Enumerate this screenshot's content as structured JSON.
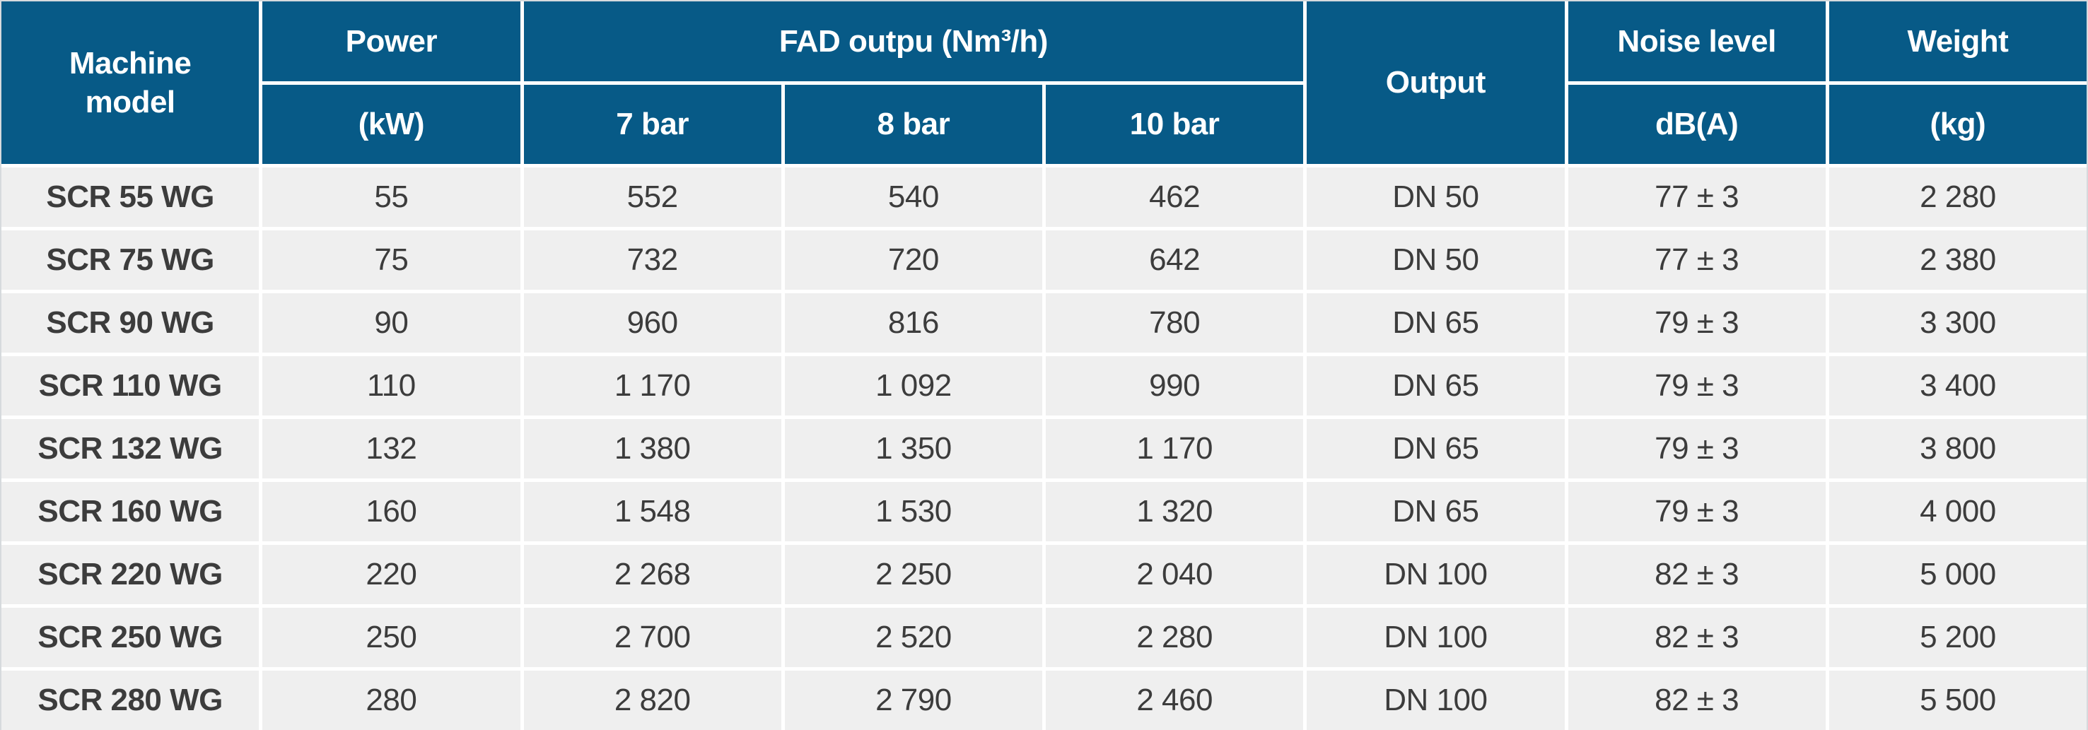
{
  "theme": {
    "header_bg": "#075a87",
    "header_text": "#ffffff",
    "row_bg": "#efefef",
    "row_text": "#3c3c3c",
    "separator": "#ffffff",
    "outer_border": "#d6dadd"
  },
  "table": {
    "header": {
      "machine_model": "Machine model",
      "power": "Power",
      "power_unit": "(kW)",
      "fad": "FAD outpu (Nm³/h)",
      "fad_sub": [
        "7 bar",
        "8 bar",
        "10 bar"
      ],
      "output": "Output",
      "noise": "Noise level",
      "noise_unit": "dB(A)",
      "weight": "Weight",
      "weight_unit": "(kg)"
    },
    "column_keys": [
      "model",
      "power_kw",
      "fad_7bar",
      "fad_8bar",
      "fad_10bar",
      "output",
      "noise_db",
      "weight_kg"
    ],
    "rows": [
      {
        "model": "SCR 55 WG",
        "power_kw": "55",
        "fad_7bar": "552",
        "fad_8bar": "540",
        "fad_10bar": "462",
        "output": "DN 50",
        "noise_db": "77 ± 3",
        "weight_kg": "2 280"
      },
      {
        "model": "SCR 75 WG",
        "power_kw": "75",
        "fad_7bar": "732",
        "fad_8bar": "720",
        "fad_10bar": "642",
        "output": "DN 50",
        "noise_db": "77 ± 3",
        "weight_kg": "2 380"
      },
      {
        "model": "SCR 90 WG",
        "power_kw": "90",
        "fad_7bar": "960",
        "fad_8bar": "816",
        "fad_10bar": "780",
        "output": "DN 65",
        "noise_db": "79 ± 3",
        "weight_kg": "3 300"
      },
      {
        "model": "SCR 110 WG",
        "power_kw": "110",
        "fad_7bar": "1 170",
        "fad_8bar": "1 092",
        "fad_10bar": "990",
        "output": "DN 65",
        "noise_db": "79 ± 3",
        "weight_kg": "3 400"
      },
      {
        "model": "SCR 132 WG",
        "power_kw": "132",
        "fad_7bar": "1 380",
        "fad_8bar": "1 350",
        "fad_10bar": "1 170",
        "output": "DN 65",
        "noise_db": "79 ± 3",
        "weight_kg": "3 800"
      },
      {
        "model": "SCR 160 WG",
        "power_kw": "160",
        "fad_7bar": "1 548",
        "fad_8bar": "1 530",
        "fad_10bar": "1 320",
        "output": "DN 65",
        "noise_db": "79 ± 3",
        "weight_kg": "4 000"
      },
      {
        "model": "SCR 220 WG",
        "power_kw": "220",
        "fad_7bar": "2 268",
        "fad_8bar": "2 250",
        "fad_10bar": "2 040",
        "output": "DN 100",
        "noise_db": "82 ± 3",
        "weight_kg": "5 000"
      },
      {
        "model": "SCR 250 WG",
        "power_kw": "250",
        "fad_7bar": "2 700",
        "fad_8bar": "2 520",
        "fad_10bar": "2 280",
        "output": "DN 100",
        "noise_db": "82 ± 3",
        "weight_kg": "5 200"
      },
      {
        "model": "SCR 280 WG",
        "power_kw": "280",
        "fad_7bar": "2 820",
        "fad_8bar": "2 790",
        "fad_10bar": "2 460",
        "output": "DN 100",
        "noise_db": "82 ± 3",
        "weight_kg": "5 500"
      }
    ]
  }
}
